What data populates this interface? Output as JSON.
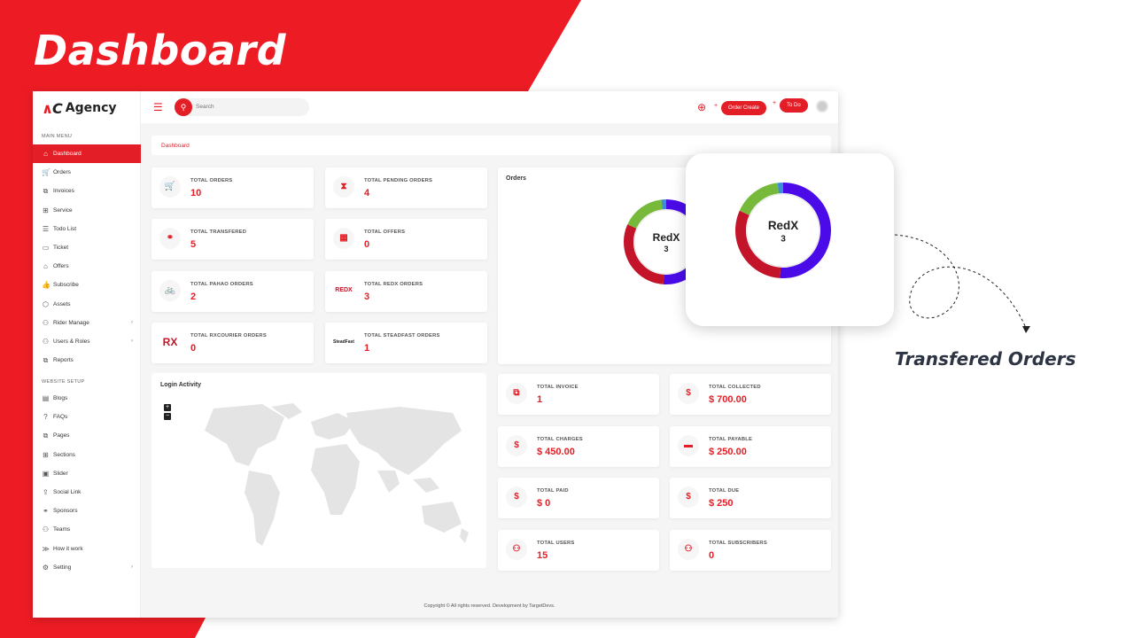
{
  "banner": {
    "title": "Dashboard",
    "callout_caption": "Transfered Orders"
  },
  "brand": {
    "mark": "AC",
    "name": "Agency"
  },
  "colors": {
    "accent": "#e41e26",
    "donut_blue": "#4a0be8",
    "donut_red": "#c4142a",
    "donut_green": "#77b93a"
  },
  "sidebar": {
    "main_menu_heading": "MAIN MENU",
    "items": [
      {
        "label": "Dashboard",
        "icon": "home-icon",
        "glyph": "⌂"
      },
      {
        "label": "Orders",
        "icon": "cart-icon",
        "glyph": "🛒"
      },
      {
        "label": "Invoices",
        "icon": "invoice-icon",
        "glyph": "⧉"
      },
      {
        "label": "Service",
        "icon": "grid-icon",
        "glyph": "⊞"
      },
      {
        "label": "Todo List",
        "icon": "list-icon",
        "glyph": "☰"
      },
      {
        "label": "Ticket",
        "icon": "ticket-icon",
        "glyph": "▭"
      },
      {
        "label": "Offers",
        "icon": "store-icon",
        "glyph": "⌂"
      },
      {
        "label": "Subscribe",
        "icon": "thumbs-up-icon",
        "glyph": "👍"
      },
      {
        "label": "Assets",
        "icon": "assets-icon",
        "glyph": "⬡"
      },
      {
        "label": "Rider Manage",
        "icon": "users-icon",
        "glyph": "⚇"
      },
      {
        "label": "Users & Roles",
        "icon": "users-roles-icon",
        "glyph": "⚇"
      },
      {
        "label": "Reports",
        "icon": "reports-icon",
        "glyph": "⧉"
      }
    ],
    "website_setup_heading": "WEBSITE SETUP",
    "setup_items": [
      {
        "label": "Blogs",
        "icon": "blog-icon",
        "glyph": "▤"
      },
      {
        "label": "FAQs",
        "icon": "question-icon",
        "glyph": "?"
      },
      {
        "label": "Pages",
        "icon": "pages-icon",
        "glyph": "⧉"
      },
      {
        "label": "Sections",
        "icon": "sections-icon",
        "glyph": "⊞"
      },
      {
        "label": "Slider",
        "icon": "image-icon",
        "glyph": "▣"
      },
      {
        "label": "Social Link",
        "icon": "share-icon",
        "glyph": "⇪"
      },
      {
        "label": "Sponsors",
        "icon": "handshake-icon",
        "glyph": "⚭"
      },
      {
        "label": "Teams",
        "icon": "team-icon",
        "glyph": "⚇"
      },
      {
        "label": "How it work",
        "icon": "chevrons-right-icon",
        "glyph": "≫"
      },
      {
        "label": "Setting",
        "icon": "gear-icon",
        "glyph": "⚙"
      }
    ]
  },
  "topbar": {
    "search_placeholder": "Search",
    "order_create": "Order Create",
    "todo": "To Do"
  },
  "breadcrumb": "Dashboard",
  "order_cards": [
    {
      "label": "TOTAL ORDERS",
      "value": "10",
      "icon": "cart-icon",
      "glyph": "🛒"
    },
    {
      "label": "TOTAL PENDING ORDERS",
      "value": "4",
      "icon": "hourglass-icon",
      "glyph": "⧗"
    },
    {
      "label": "TOTAL TRANSFERED",
      "value": "5",
      "icon": "handshake-icon",
      "glyph": "⚭"
    },
    {
      "label": "TOTAL OFFERS",
      "value": "0",
      "icon": "store-icon",
      "glyph": "▦"
    },
    {
      "label": "TOTAL PAHAO ORDERS",
      "value": "2",
      "icon": "cyclist-icon",
      "glyph": "🚲"
    },
    {
      "label": "TOTAL REDX ORDERS",
      "value": "3",
      "icon": "redx-logo-icon",
      "glyph": "REDX"
    },
    {
      "label": "TOTAL RXCOURIER ORDERS",
      "value": "0",
      "icon": "rx-logo-icon",
      "glyph": "RX"
    },
    {
      "label": "TOTAL STEADFAST ORDERS",
      "value": "1",
      "icon": "steadfast-logo-icon",
      "glyph": "SteadFast"
    }
  ],
  "orders_panel": {
    "title": "Orders",
    "center_label": "RedX",
    "center_value": "3"
  },
  "chart_data": {
    "type": "pie",
    "title": "Orders",
    "center_label": "RedX",
    "center_value": "3",
    "slices": [
      {
        "value": 5,
        "color": "#4a0be8"
      },
      {
        "value": 3,
        "color": "#c4142a"
      },
      {
        "value": 1.6,
        "color": "#77b93a"
      },
      {
        "value": 0.2,
        "color": "#3b8ed6"
      }
    ]
  },
  "finance_cards": [
    {
      "label": "TOTAL INVOICE",
      "value": "1",
      "icon": "invoice-icon",
      "glyph": "⧉"
    },
    {
      "label": "TOTAL COLLECTED",
      "value": "$ 700.00",
      "icon": "cash-register-icon",
      "glyph": "$"
    },
    {
      "label": "TOTAL CHARGES",
      "value": "$ 450.00",
      "icon": "dollar-icon",
      "glyph": "$"
    },
    {
      "label": "TOTAL PAYABLE",
      "value": "$ 250.00",
      "icon": "credit-card-icon",
      "glyph": "▬"
    },
    {
      "label": "TOTAL PAID",
      "value": "$ 0",
      "icon": "hand-money-icon",
      "glyph": "$"
    },
    {
      "label": "TOTAL DUE",
      "value": "$ 250",
      "icon": "dollar-icon",
      "glyph": "$"
    },
    {
      "label": "TOTAL USERS",
      "value": "15",
      "icon": "users-icon",
      "glyph": "⚇"
    },
    {
      "label": "TOTAL SUBSCRIBERS",
      "value": "0",
      "icon": "subscribers-icon",
      "glyph": "⚇"
    }
  ],
  "login_activity": {
    "title": "Login Activity",
    "zoom_in": "+",
    "zoom_out": "−"
  },
  "footer": "Copyright © All rights reserved. Development by TargetDevs."
}
